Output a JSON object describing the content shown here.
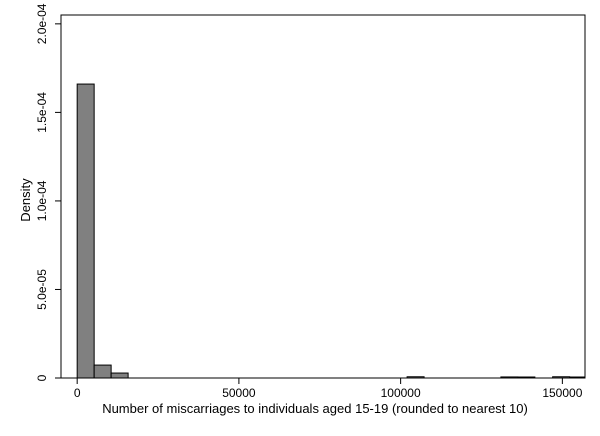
{
  "chart_data": {
    "type": "bar",
    "title": "",
    "xlabel": "Number of miscarriages to individuals aged 15-19 (rounded to nearest 10)",
    "ylabel": "Density",
    "xlim": [
      -5000,
      157000
    ],
    "ylim": [
      0,
      0.000205
    ],
    "grid": false,
    "colors": {
      "bar_fill": "#808080",
      "bar_stroke": "#000000",
      "axis": "#000000"
    },
    "xticks": [
      {
        "value": 0,
        "label": "0"
      },
      {
        "value": 50000,
        "label": "50000"
      },
      {
        "value": 100000,
        "label": "100000"
      },
      {
        "value": 150000,
        "label": "150000"
      }
    ],
    "yticks": [
      {
        "value": 0,
        "label": "0"
      },
      {
        "value": 5e-05,
        "label": "5.0e-05"
      },
      {
        "value": 0.0001,
        "label": "1.0e-04"
      },
      {
        "value": 0.00015,
        "label": "1.5e-04"
      },
      {
        "value": 0.0002,
        "label": "2.0e-04"
      }
    ],
    "bins": [
      {
        "x0": 0,
        "x1": 5250,
        "density": 0.000166
      },
      {
        "x0": 5250,
        "x1": 10500,
        "density": 7.3e-06
      },
      {
        "x0": 10500,
        "x1": 15750,
        "density": 2.8e-06
      },
      {
        "x0": 102000,
        "x1": 107250,
        "density": 7e-07
      },
      {
        "x0": 131000,
        "x1": 136250,
        "density": 6e-07
      },
      {
        "x0": 136250,
        "x1": 141500,
        "density": 3e-07
      },
      {
        "x0": 147000,
        "x1": 152250,
        "density": 7e-07
      },
      {
        "x0": 152250,
        "x1": 157000,
        "density": 3e-07
      }
    ]
  }
}
